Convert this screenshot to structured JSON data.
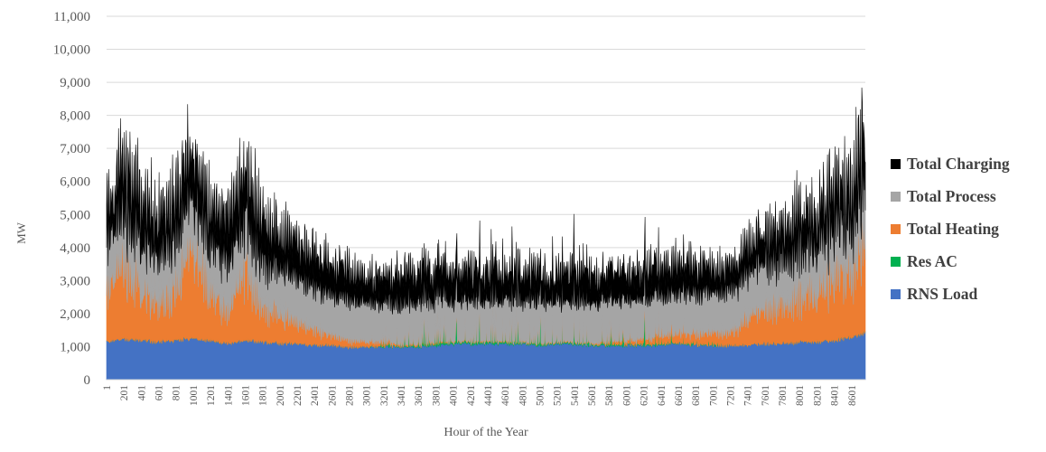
{
  "chart_data": {
    "type": "area",
    "stacked": true,
    "title": "",
    "xlabel": "Hour of the Year",
    "ylabel": "MW",
    "ylim": [
      0,
      11000
    ],
    "xlim": [
      1,
      8760
    ],
    "grid": true,
    "legend_position": "right",
    "y_ticks": [
      "0",
      "1,000",
      "2,000",
      "3,000",
      "4,000",
      "5,000",
      "6,000",
      "7,000",
      "8,000",
      "9,000",
      "10,000",
      "11,000"
    ],
    "x_ticks": [
      "1",
      "201",
      "401",
      "601",
      "801",
      "1001",
      "1201",
      "1401",
      "1601",
      "1801",
      "2001",
      "2201",
      "2401",
      "2601",
      "2801",
      "3001",
      "3201",
      "3401",
      "3601",
      "3801",
      "4001",
      "4201",
      "4401",
      "4601",
      "4801",
      "5001",
      "5201",
      "5401",
      "5601",
      "5801",
      "6001",
      "6201",
      "6401",
      "6601",
      "6801",
      "7001",
      "7201",
      "7401",
      "7601",
      "7801",
      "8001",
      "8201",
      "8401",
      "8601"
    ],
    "x_sample": [
      1,
      201,
      401,
      601,
      801,
      1001,
      1201,
      1401,
      1601,
      1801,
      2001,
      2201,
      2401,
      2601,
      2801,
      3001,
      3201,
      3401,
      3601,
      3801,
      4001,
      4201,
      4401,
      4601,
      4801,
      5001,
      5201,
      5401,
      5601,
      5801,
      6001,
      6201,
      6401,
      6601,
      6801,
      7001,
      7201,
      7401,
      7601,
      7801,
      8001,
      8201,
      8401,
      8601,
      8760
    ],
    "series": [
      {
        "name": "RNS Load",
        "color": "#4472C4",
        "values": [
          1150,
          1250,
          1200,
          1150,
          1200,
          1250,
          1200,
          1100,
          1200,
          1150,
          1100,
          1100,
          1050,
          1050,
          1000,
          1000,
          1000,
          1000,
          1000,
          1050,
          1100,
          1100,
          1100,
          1100,
          1100,
          1050,
          1100,
          1100,
          1050,
          1050,
          1050,
          1050,
          1050,
          1100,
          1050,
          1050,
          1050,
          1050,
          1100,
          1100,
          1150,
          1150,
          1200,
          1300,
          1450
        ]
      },
      {
        "name": "Res AC",
        "color": "#00B050",
        "values": [
          0,
          0,
          0,
          0,
          0,
          0,
          0,
          0,
          0,
          0,
          0,
          0,
          0,
          0,
          0,
          0,
          100,
          150,
          150,
          200,
          300,
          250,
          250,
          300,
          200,
          200,
          200,
          250,
          200,
          200,
          150,
          200,
          150,
          100,
          50,
          50,
          0,
          0,
          0,
          0,
          0,
          0,
          0,
          0,
          0
        ]
      },
      {
        "name": "Total Heating",
        "color": "#ED7D31",
        "values": [
          1600,
          2400,
          1400,
          1300,
          1700,
          2800,
          1500,
          1000,
          2300,
          1100,
          900,
          700,
          500,
          300,
          200,
          150,
          100,
          50,
          50,
          50,
          30,
          30,
          30,
          30,
          30,
          30,
          30,
          30,
          30,
          80,
          100,
          150,
          250,
          300,
          300,
          350,
          400,
          800,
          1100,
          1300,
          1400,
          1600,
          2000,
          2100,
          3200
        ]
      },
      {
        "name": "Total Process",
        "color": "#A5A5A5",
        "values": [
          1400,
          1500,
          1500,
          1500,
          1500,
          1500,
          1500,
          1500,
          1500,
          1400,
          1400,
          1350,
          1300,
          1250,
          1250,
          1250,
          1200,
          1200,
          1200,
          1200,
          1200,
          1200,
          1200,
          1200,
          1200,
          1200,
          1200,
          1200,
          1200,
          1200,
          1200,
          1200,
          1200,
          1250,
          1250,
          1250,
          1300,
          1350,
          1400,
          1400,
          1400,
          1450,
          1450,
          1500,
          1600
        ]
      },
      {
        "name": "Total Charging",
        "color": "#000000",
        "values": [
          900,
          1300,
          1200,
          1000,
          1100,
          1300,
          1100,
          1200,
          1300,
          1200,
          1000,
          1000,
          900,
          900,
          800,
          700,
          750,
          750,
          750,
          800,
          850,
          800,
          750,
          750,
          750,
          750,
          800,
          850,
          800,
          800,
          750,
          800,
          800,
          850,
          800,
          700,
          600,
          700,
          800,
          800,
          850,
          900,
          1000,
          1100,
          1500
        ]
      }
    ]
  }
}
